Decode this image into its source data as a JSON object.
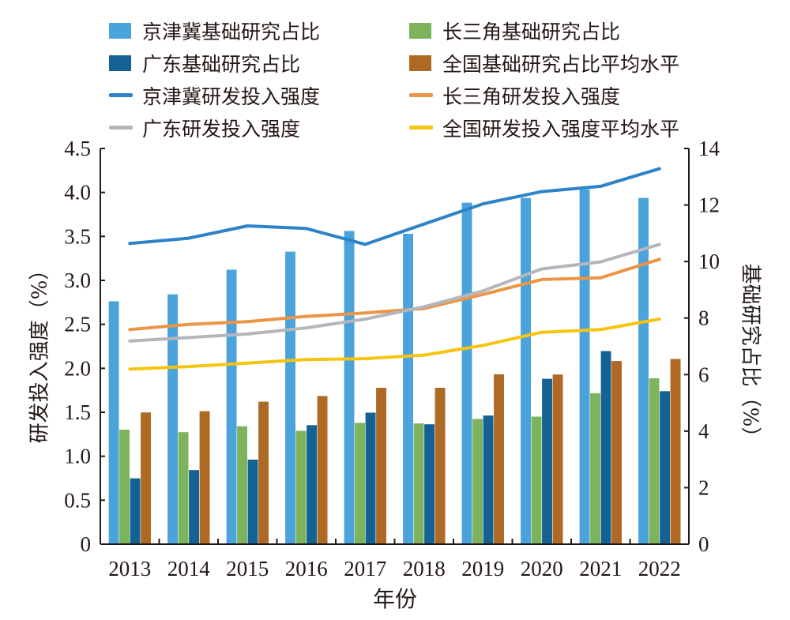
{
  "chart_data": {
    "type": "bar",
    "title": "",
    "categories": [
      "2013",
      "2014",
      "2015",
      "2016",
      "2017",
      "2018",
      "2019",
      "2020",
      "2021",
      "2022"
    ],
    "xlabel": "年份",
    "ylabel_left": "研发投入强度（%）",
    "ylabel_right": "基础研究占比（%）",
    "ylim_left": [
      0,
      4.5
    ],
    "yticks_left": [
      "0",
      "0.5",
      "1.0",
      "1.5",
      "2.0",
      "2.5",
      "3.0",
      "3.5",
      "4.0",
      "4.5"
    ],
    "ylim_right": [
      0,
      14
    ],
    "yticks_right": [
      "0",
      "2",
      "4",
      "6",
      "8",
      "10",
      "12",
      "14"
    ],
    "grid": false,
    "legend_position": "top",
    "bar_series": [
      {
        "name": "京津冀基础研究占比",
        "axis": "right",
        "color": "#4aa3db",
        "values": [
          8.6,
          8.85,
          9.72,
          10.36,
          11.09,
          10.99,
          12.09,
          12.26,
          12.56,
          12.26
        ]
      },
      {
        "name": "长三角基础研究占比",
        "axis": "right",
        "color": "#7cb35c",
        "values": [
          4.06,
          3.97,
          4.18,
          4.02,
          4.3,
          4.28,
          4.44,
          4.52,
          5.35,
          5.88
        ]
      },
      {
        "name": "广东基础研究占比",
        "axis": "right",
        "color": "#136293",
        "values": [
          2.34,
          2.63,
          3.0,
          4.22,
          4.66,
          4.25,
          4.56,
          5.86,
          6.84,
          5.42
        ]
      },
      {
        "name": "全国基础研究占比平均水平",
        "axis": "right",
        "color": "#ae6a25",
        "values": [
          4.67,
          4.71,
          5.05,
          5.25,
          5.54,
          5.54,
          6.02,
          6.01,
          6.49,
          6.56
        ]
      }
    ],
    "line_series": [
      {
        "name": "京津冀研发投入强度",
        "axis": "left",
        "color": "#2e83c8",
        "values": [
          3.42,
          3.48,
          3.62,
          3.59,
          3.41,
          3.64,
          3.87,
          4.01,
          4.07,
          4.27
        ]
      },
      {
        "name": "长三角研发投入强度",
        "axis": "left",
        "color": "#ec9447",
        "values": [
          2.44,
          2.5,
          2.53,
          2.59,
          2.63,
          2.68,
          2.84,
          3.01,
          3.03,
          3.24
        ]
      },
      {
        "name": "广东研发投入强度",
        "axis": "left",
        "color": "#b4b6bc",
        "values": [
          2.31,
          2.35,
          2.39,
          2.46,
          2.56,
          2.7,
          2.88,
          3.13,
          3.21,
          3.41
        ]
      },
      {
        "name": "全国研发投入强度平均水平",
        "axis": "left",
        "color": "#f6c40f",
        "values": [
          1.99,
          2.02,
          2.06,
          2.1,
          2.11,
          2.15,
          2.26,
          2.41,
          2.44,
          2.56
        ]
      }
    ]
  },
  "legend": [
    {
      "label": "京津冀基础研究占比",
      "kind": "bar",
      "color": "#4aa3db"
    },
    {
      "label": "长三角基础研究占比",
      "kind": "bar",
      "color": "#7cb35c"
    },
    {
      "label": "广东基础研究占比",
      "kind": "bar",
      "color": "#136293"
    },
    {
      "label": "全国基础研究占比平均水平",
      "kind": "bar",
      "color": "#ae6a25"
    },
    {
      "label": "京津冀研发投入强度",
      "kind": "line",
      "color": "#2e83c8"
    },
    {
      "label": "长三角研发投入强度",
      "kind": "line",
      "color": "#ec9447"
    },
    {
      "label": "广东研发投入强度",
      "kind": "line",
      "color": "#b4b6bc"
    },
    {
      "label": "全国研发投入强度平均水平",
      "kind": "line",
      "color": "#f6c40f"
    }
  ]
}
